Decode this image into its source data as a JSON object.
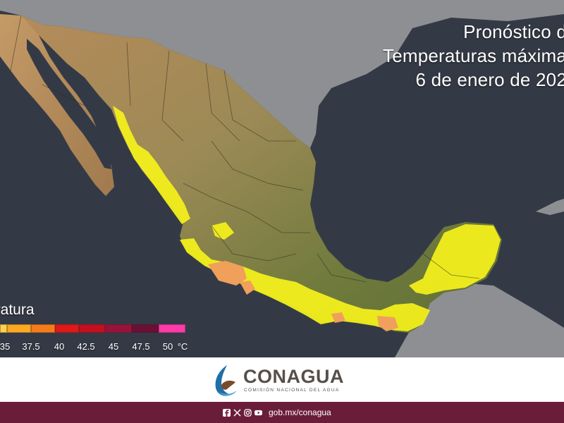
{
  "title": {
    "line1": "Pronóstico d",
    "line2": "Temperaturas máxima",
    "line3": "6 de enero de 202"
  },
  "legend": {
    "title": "eratura",
    "ticks": [
      "35",
      "37.5",
      "40",
      "42.5",
      "45",
      "47.5",
      "50",
      "°C"
    ],
    "colors": [
      "#ffd24a",
      "#fca821",
      "#f47c1a",
      "#e01818",
      "#c40f1e",
      "#98123a",
      "#6a0f35",
      "#ff3aa8"
    ]
  },
  "colors": {
    "ocean": "#343a45",
    "land_neighbor": "#8d8f93",
    "land_mexico": "#8a8a4a",
    "yellow_zone": "#f2ef1c",
    "orange_zone": "#f0a05a",
    "brand": "#6a1d39"
  },
  "footer": {
    "logo_name": "CONAGUA",
    "logo_subtitle": "COMISIÓN NACIONAL DEL AGUA",
    "social_icons": [
      "facebook-icon",
      "x-icon",
      "instagram-icon",
      "youtube-icon"
    ],
    "url": "gob.mx/conagua"
  }
}
